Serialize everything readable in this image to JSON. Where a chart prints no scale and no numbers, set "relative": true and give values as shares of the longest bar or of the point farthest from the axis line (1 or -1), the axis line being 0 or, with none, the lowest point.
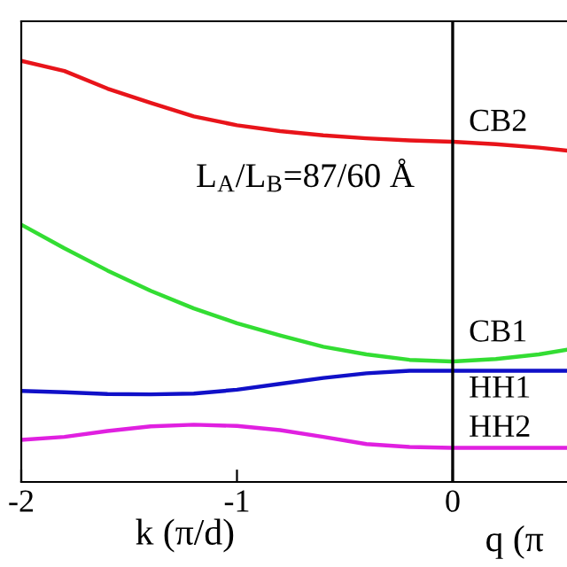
{
  "chart_data": {
    "type": "line",
    "relative": true,
    "xlabel": "k (π/d)",
    "annotations": [
      "L$_{A}$/L$_{B}$=87/60 Å",
      "q (π"
    ],
    "x": [
      -2,
      -1.8,
      -1.6,
      -1.4,
      -1.2,
      -1,
      -0.8,
      -0.6,
      -0.4,
      -0.2,
      0,
      0.2,
      0.4,
      0.53
    ],
    "xlim": [
      -2,
      0.53
    ],
    "xticks": [
      -2,
      -1,
      0
    ],
    "series": [
      {
        "name": "CB2",
        "color": "#e8141a",
        "values": [
          1,
          0.976,
          0.934,
          0.9,
          0.868,
          0.847,
          0.833,
          0.823,
          0.816,
          0.811,
          0.808,
          0.802,
          0.794,
          0.787
        ]
      },
      {
        "name": "CB1",
        "color": "#33dd33",
        "values": [
          0.611,
          0.555,
          0.502,
          0.454,
          0.412,
          0.377,
          0.348,
          0.321,
          0.303,
          0.29,
          0.286,
          0.292,
          0.303,
          0.314
        ]
      },
      {
        "name": "HH1",
        "color": "#1010c8",
        "values": [
          0.216,
          0.213,
          0.209,
          0.208,
          0.21,
          0.219,
          0.233,
          0.247,
          0.258,
          0.264,
          0.264,
          0.264,
          0.264,
          0.264
        ]
      },
      {
        "name": "HH2",
        "color": "#e020e0",
        "values": [
          0.1,
          0.107,
          0.121,
          0.132,
          0.136,
          0.133,
          0.123,
          0.107,
          0.09,
          0.083,
          0.081,
          0.081,
          0.081,
          0.081
        ]
      }
    ],
    "ref_lines": [
      {
        "axis": "x",
        "value": 0,
        "color": "#000000"
      }
    ],
    "grid": false,
    "marker": "none",
    "line_style": "solid"
  }
}
